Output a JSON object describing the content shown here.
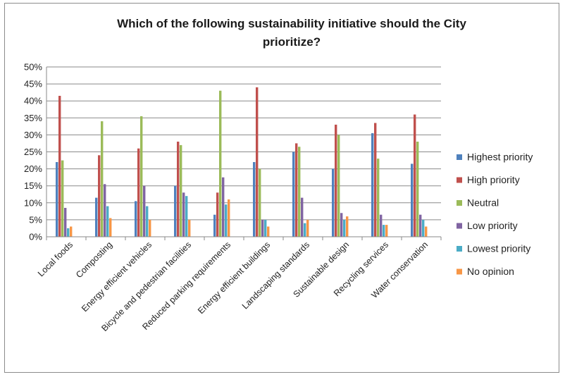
{
  "chart_data": {
    "type": "bar",
    "title_lines": [
      "Which of the following sustainability initiative should the City",
      "prioritize?"
    ],
    "categories": [
      "Local foods",
      "Composting",
      "Energy efficient vehicles",
      "Bicycle and pedestrian facilities",
      "Reduced parking requirements",
      "Energy efficient buildings",
      "Landscaping standards",
      "Sustainable design",
      "Recycling services",
      "Water conservation"
    ],
    "y_ticks": [
      "0%",
      "5%",
      "10%",
      "15%",
      "20%",
      "25%",
      "30%",
      "35%",
      "40%",
      "45%",
      "50%"
    ],
    "ylim": [
      0,
      50
    ],
    "y_unit": "%",
    "grid": true,
    "legend_position": "right",
    "series": [
      {
        "name": "Highest priority",
        "color": "#4f81bd",
        "values": [
          22,
          11.5,
          10.5,
          15,
          6.5,
          22,
          25,
          20,
          30.5,
          21.5
        ]
      },
      {
        "name": "High priority",
        "color": "#c0504d",
        "values": [
          41.5,
          24,
          26,
          28,
          13,
          44,
          27.5,
          33,
          33.5,
          36
        ]
      },
      {
        "name": "Neutral",
        "color": "#9bbb59",
        "values": [
          22.5,
          34,
          35.5,
          27,
          43,
          20,
          26.5,
          30,
          23,
          28
        ]
      },
      {
        "name": "Low priority",
        "color": "#8064a2",
        "values": [
          8.5,
          15.5,
          15,
          13,
          17.5,
          5,
          11.5,
          7,
          6.5,
          6.5
        ]
      },
      {
        "name": "Lowest priority",
        "color": "#4bacc6",
        "values": [
          2.5,
          9,
          9,
          12,
          9.5,
          5,
          4,
          5,
          3.5,
          5
        ]
      },
      {
        "name": "No opinion",
        "color": "#f79646",
        "values": [
          3,
          5.5,
          5,
          5,
          11,
          3,
          5,
          6,
          3.5,
          3
        ]
      }
    ]
  }
}
